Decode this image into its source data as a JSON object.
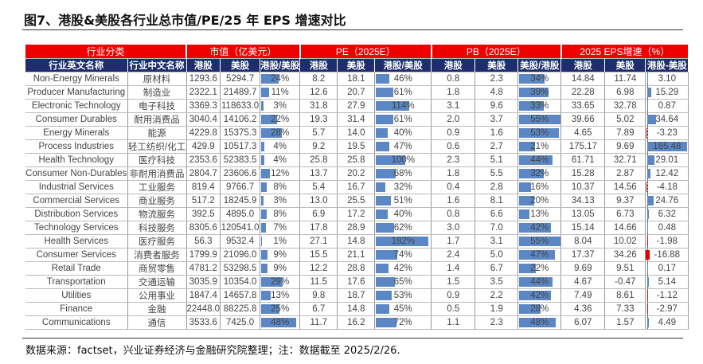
{
  "title": "图7、港股&美股各行业总市值/PE/25 年 EPS 增速对比",
  "groups": [
    "行业分类",
    "市值（亿美元）",
    "PE（2025E）",
    "PB（2025E）",
    "2025 EPS增速（%）"
  ],
  "headers": [
    "行业英文名称",
    "行业中文名称",
    "港股",
    "美股",
    "港股/美股",
    "港股",
    "美股",
    "港股/美股",
    "港股",
    "美股",
    "美股/港股",
    "港股",
    "美股",
    "港股-美股"
  ],
  "rows": [
    [
      "Non-Energy Minerals",
      "原材料",
      "1293.6",
      "5294.7",
      "24%",
      "8.2",
      "18.1",
      "46%",
      "0.8",
      "2.3",
      "34%",
      "14.84",
      "11.74",
      "3.10"
    ],
    [
      "Producer Manufacturing",
      "制造业",
      "2322.1",
      "21489.7",
      "11%",
      "12.6",
      "20.7",
      "61%",
      "1.8",
      "4.8",
      "39%",
      "22.28",
      "6.98",
      "15.29"
    ],
    [
      "Electronic Technology",
      "电子科技",
      "3369.3",
      "118633.0",
      "3%",
      "31.8",
      "27.9",
      "114%",
      "3.1",
      "9.6",
      "33%",
      "33.65",
      "32.78",
      "0.87"
    ],
    [
      "Consumer Durables",
      "耐用消费品",
      "3040.4",
      "14106.2",
      "22%",
      "19.3",
      "31.4",
      "61%",
      "2.0",
      "3.7",
      "55%",
      "39.66",
      "5.02",
      "34.64"
    ],
    [
      "Energy Minerals",
      "能源",
      "4229.8",
      "15375.3",
      "28%",
      "5.7",
      "14.0",
      "40%",
      "0.9",
      "1.6",
      "53%",
      "4.65",
      "7.89",
      "-3.23"
    ],
    [
      "Process Industries",
      "轻工纺织/化工",
      "429.9",
      "10517.3",
      "4%",
      "9.2",
      "19.5",
      "47%",
      "0.6",
      "2.7",
      "21%",
      "175.17",
      "9.69",
      "165.48"
    ],
    [
      "Health Technology",
      "医疗科技",
      "2353.6",
      "52383.5",
      "4%",
      "25.8",
      "25.8",
      "100%",
      "2.3",
      "5.1",
      "44%",
      "61.71",
      "32.71",
      "29.01"
    ],
    [
      "Consumer Non-Durables",
      "非耐用消费品",
      "2804.7",
      "23606.6",
      "12%",
      "13.7",
      "20.2",
      "68%",
      "1.8",
      "5.5",
      "32%",
      "15.28",
      "2.87",
      "12.42"
    ],
    [
      "Industrial Services",
      "工业服务",
      "819.4",
      "9766.7",
      "8%",
      "5.4",
      "16.7",
      "32%",
      "0.4",
      "2.8",
      "16%",
      "10.37",
      "14.56",
      "-4.18"
    ],
    [
      "Commercial Services",
      "商业服务",
      "517.2",
      "18245.9",
      "3%",
      "13.0",
      "25.5",
      "51%",
      "1.6",
      "8.1",
      "20%",
      "34.13",
      "9.37",
      "24.76"
    ],
    [
      "Distribution Services",
      "物流服务",
      "392.5",
      "4895.0",
      "8%",
      "6.9",
      "17.2",
      "40%",
      "0.8",
      "6.6",
      "13%",
      "13.05",
      "6.73",
      "6.32"
    ],
    [
      "Technology Services",
      "科技服务",
      "8305.6",
      "120541.0",
      "7%",
      "17.8",
      "28.9",
      "62%",
      "3.0",
      "7.0",
      "42%",
      "15.14",
      "14.66",
      "0.48"
    ],
    [
      "Health Services",
      "医疗服务",
      "56.3",
      "9532.4",
      "1%",
      "27.1",
      "14.8",
      "182%",
      "1.7",
      "3.1",
      "55%",
      "8.04",
      "10.02",
      "-1.98"
    ],
    [
      "Consumer Services",
      "消费者服务",
      "1799.9",
      "21096.0",
      "9%",
      "15.5",
      "21.1",
      "74%",
      "2.4",
      "5.0",
      "47%",
      "17.37",
      "34.26",
      "-16.88"
    ],
    [
      "Retail Trade",
      "商贸零售",
      "4781.2",
      "53298.5",
      "9%",
      "12.2",
      "28.8",
      "42%",
      "1.4",
      "6.7",
      "22%",
      "9.69",
      "9.51",
      "0.17"
    ],
    [
      "Transportation",
      "交通运输",
      "3035.9",
      "10354.0",
      "29%",
      "11.5",
      "17.6",
      "65%",
      "1.5",
      "3.5",
      "44%",
      "4.67",
      "-0.47",
      "5.14"
    ],
    [
      "Utilities",
      "公用事业",
      "1847.4",
      "14657.8",
      "13%",
      "9.8",
      "18.7",
      "53%",
      "0.9",
      "2.2",
      "42%",
      "7.49",
      "8.61",
      "-1.12"
    ],
    [
      "Finance",
      "金融",
      "22448.0",
      "88225.8",
      "25%",
      "6.7",
      "14.8",
      "45%",
      "0.5",
      "1.9",
      "28%",
      "4.36",
      "7.33",
      "-2.97"
    ],
    [
      "Communications",
      "通信",
      "3533.6",
      "7425.0",
      "48%",
      "11.7",
      "16.2",
      "72%",
      "1.1",
      "2.3",
      "48%",
      "6.07",
      "1.57",
      "4.49"
    ]
  ],
  "bar_color": "#5b87c5",
  "negative_color": "#e00000",
  "group_header_color": "#ee0000",
  "header_color": "#1f2d6e",
  "note": "数据来源：factset，兴业证券经济与金融研究院整理；注：数据截至 2025/2/26."
}
